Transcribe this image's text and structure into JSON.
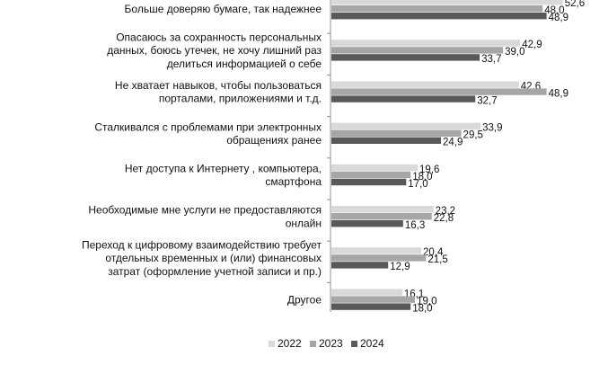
{
  "chart_data": {
    "type": "bar",
    "orientation": "horizontal",
    "grid": false,
    "legend_position": "bottom",
    "series": [
      {
        "name": "2022",
        "color": "#d9d9d9",
        "values": [
          52.6,
          42.9,
          42.6,
          33.9,
          19.6,
          23.2,
          20.4,
          16.1
        ]
      },
      {
        "name": "2023",
        "color": "#a6a6a6",
        "values": [
          48.0,
          39.0,
          48.9,
          29.5,
          18.0,
          22.8,
          21.5,
          19.0
        ]
      },
      {
        "name": "2024",
        "color": "#595959",
        "values": [
          48.9,
          33.7,
          32.7,
          24.9,
          17.0,
          16.3,
          12.9,
          18.0
        ]
      }
    ],
    "value_labels": [
      [
        "52,6",
        "42,9",
        "42,6",
        "33,9",
        "19,6",
        "23,2",
        "20,4",
        "16,1"
      ],
      [
        "48,0",
        "39,0",
        "48,9",
        "29,5",
        "18,0",
        "22,8",
        "21,5",
        "19,0"
      ],
      [
        "48,9",
        "33,7",
        "32,7",
        "24,9",
        "17,0",
        "16,3",
        "12,9",
        "18,0"
      ]
    ],
    "categories": [
      [
        "Больше доверяю бумаге, так надежнее"
      ],
      [
        "Опасаюсь за сохранность персональных",
        "данных, боюсь утечек, не хочу лишний раз",
        "делиться информацией о себе"
      ],
      [
        "Не хватает навыков, чтобы пользоваться",
        "порталами, приложениями и т.д."
      ],
      [
        "Сталкивался с проблемами при электронных",
        "обращениях ранее"
      ],
      [
        "Нет доступа к Интернету , компьютера,",
        "смартфона"
      ],
      [
        "Необходимые мне услуги не предоставляются",
        "онлайн"
      ],
      [
        "Переход к цифровому взаимодействию требует",
        "отдельных временных и (или) финансовых",
        "затрат (оформление учетной записи и пр.)"
      ],
      [
        "Другое"
      ]
    ]
  }
}
